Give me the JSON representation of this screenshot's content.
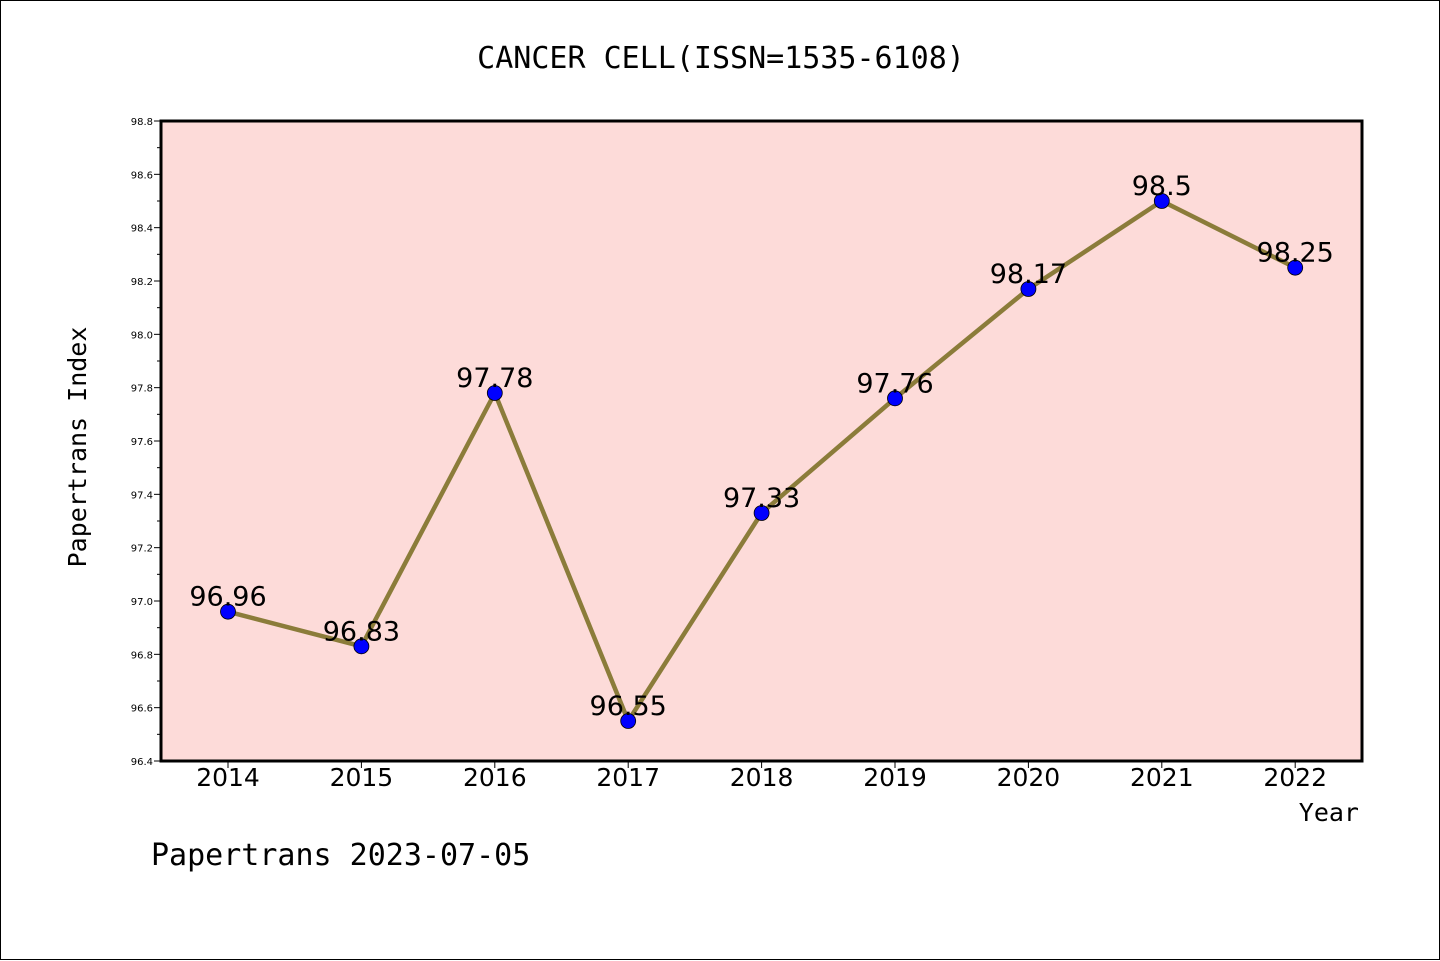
{
  "chart_data": {
    "type": "line",
    "title": "CANCER CELL(ISSN=1535-6108)",
    "xlabel": "Year",
    "ylabel": "Papertrans Index",
    "categories": [
      "2014",
      "2015",
      "2016",
      "2017",
      "2018",
      "2019",
      "2020",
      "2021",
      "2022"
    ],
    "values": [
      96.96,
      96.83,
      97.78,
      96.55,
      97.33,
      97.76,
      98.17,
      98.5,
      98.25
    ],
    "data_labels": [
      "96.96",
      "96.83",
      "97.78",
      "96.55",
      "97.33",
      "97.76",
      "98.17",
      "98.5",
      "98.25"
    ],
    "ylim": [
      96.4,
      98.8
    ],
    "yticks": [
      "96.4",
      "96.6",
      "96.8",
      "97.0",
      "97.2",
      "97.4",
      "97.6",
      "97.8",
      "98.0",
      "98.2",
      "98.4",
      "98.6",
      "98.8"
    ],
    "grid": false,
    "colors": {
      "background": "#fddbd9",
      "line": "#8b7c3a",
      "marker": "#0000ff"
    }
  },
  "footer": {
    "text": "Papertrans 2023-07-05"
  }
}
